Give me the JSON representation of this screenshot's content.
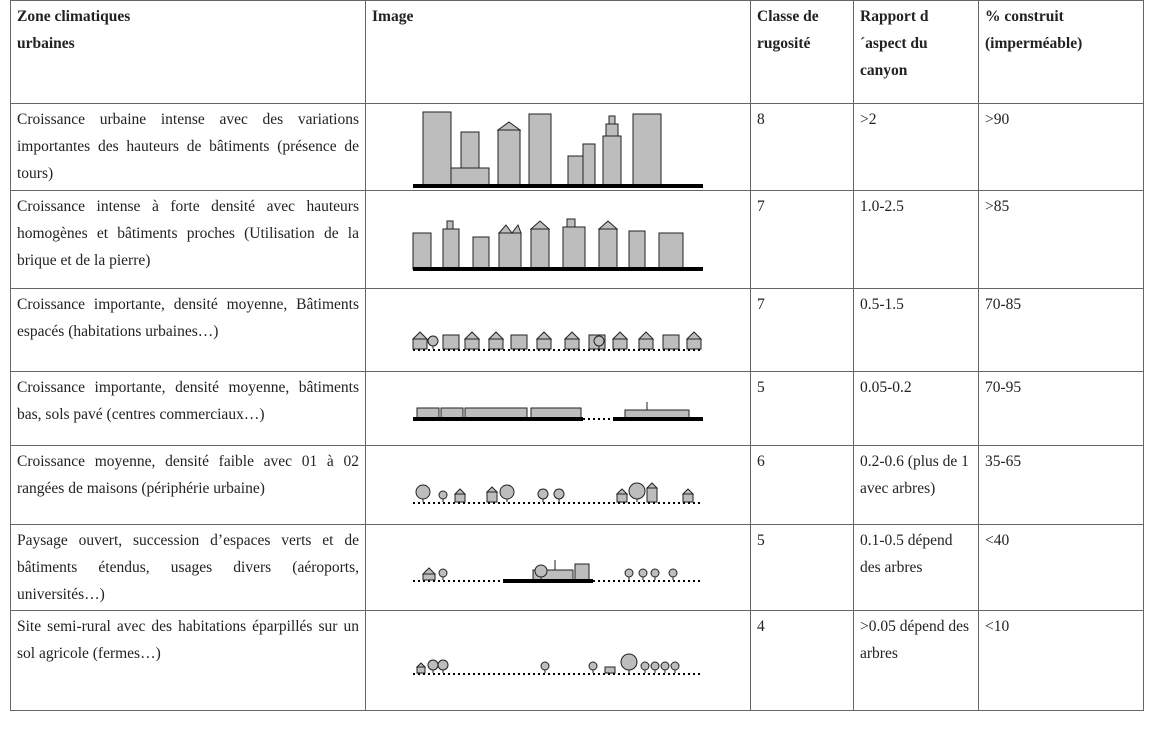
{
  "table": {
    "headers": [
      "Zone climatiques urbaines",
      "Image",
      "Classe de rugosité",
      "Rapport d´aspect du canyon",
      "% construit (imperméable)"
    ],
    "rows": [
      [
        "Croissance urbaine intense avec des variations importantes des hauteurs de bâtiments (présence de tours)",
        8,
        ">2",
        ">90"
      ],
      [
        "Croissance intense à forte densité avec hauteurs homogènes et bâtiments proches (Utilisation de la brique et de la pierre)",
        7,
        "1.0-2.5",
        ">85"
      ],
      [
        "Croissance importante, densité moyenne, Bâtiments espacés (habitations urbaines…)",
        7,
        "0.5-1.5",
        "70-85"
      ],
      [
        "Croissance importante, densité moyenne, bâtiments bas, sols pavé (centres commerciaux…)",
        5,
        "0.05-0.2",
        "70-95"
      ],
      [
        "Croissance moyenne, densité faible avec 01 à 02 rangées de maisons (périphérie urbaine)",
        6,
        "0.2-0.6 (plus de 1 avec arbres)",
        "35-65"
      ],
      [
        "Paysage ouvert, succession d’espaces verts et de bâtiments étendus, usages divers (aéroports, universités…)",
        5,
        "0.1-0.5 dépend des arbres",
        "<40"
      ],
      [
        "Site semi-rural avec des habitations éparpillés sur un sol agricole (fermes…)",
        4,
        ">0.05 dépend des arbres",
        "<10"
      ]
    ]
  }
}
